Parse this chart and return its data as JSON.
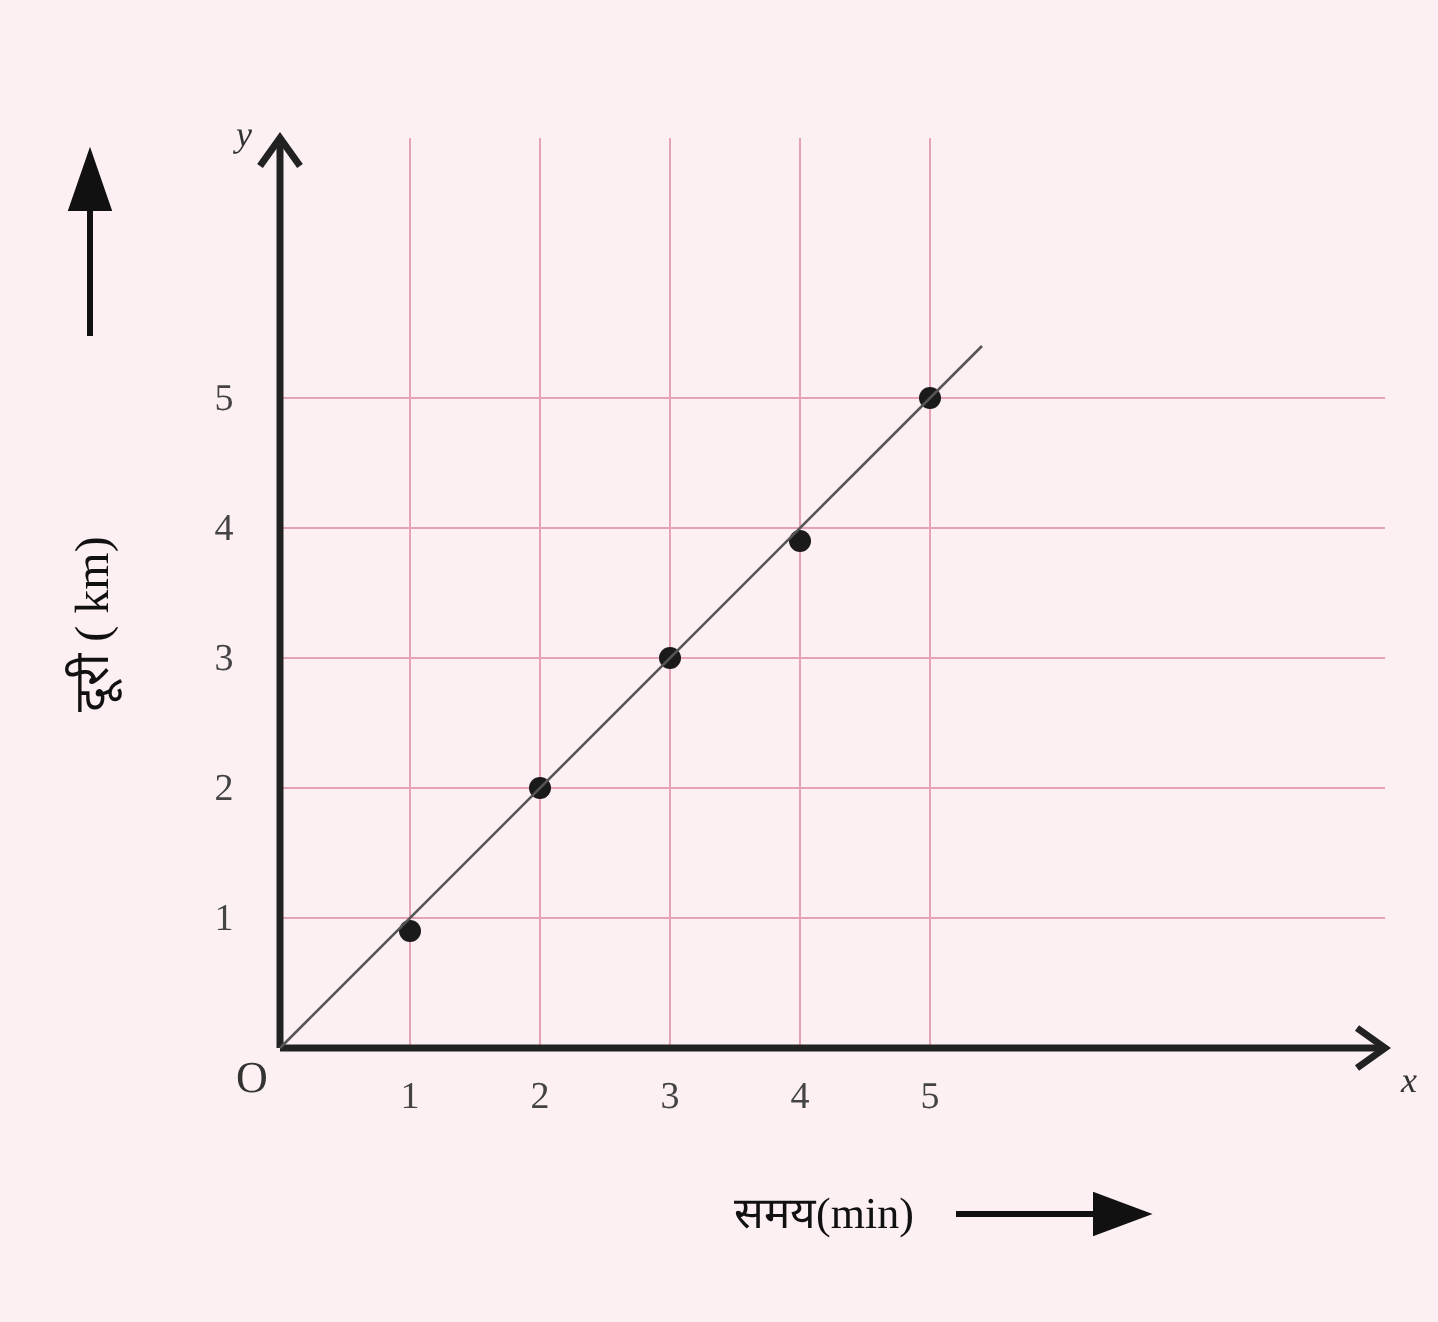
{
  "chart_data": {
    "type": "scatter",
    "xlabel": "समय(min)",
    "ylabel": "दूरी ( km)",
    "series": [
      {
        "type": "scatter",
        "x": [
          1,
          2,
          3,
          4,
          5
        ],
        "values": [
          0.9,
          2,
          3,
          3.9,
          5
        ],
        "color": "#1a1a1a",
        "marker": "circle"
      },
      {
        "type": "line",
        "x": [
          0,
          5.4
        ],
        "values": [
          0,
          5.4
        ],
        "color": "#555555",
        "line_style": "solid",
        "marker": "none"
      }
    ],
    "xlim": [
      0,
      8.5
    ],
    "ylim": [
      0,
      7
    ],
    "xticks": [
      1,
      2,
      3,
      4,
      5
    ],
    "yticks": [
      1,
      2,
      3,
      4,
      5
    ],
    "grid": true,
    "annotations": [
      "O",
      "x",
      "y"
    ]
  }
}
